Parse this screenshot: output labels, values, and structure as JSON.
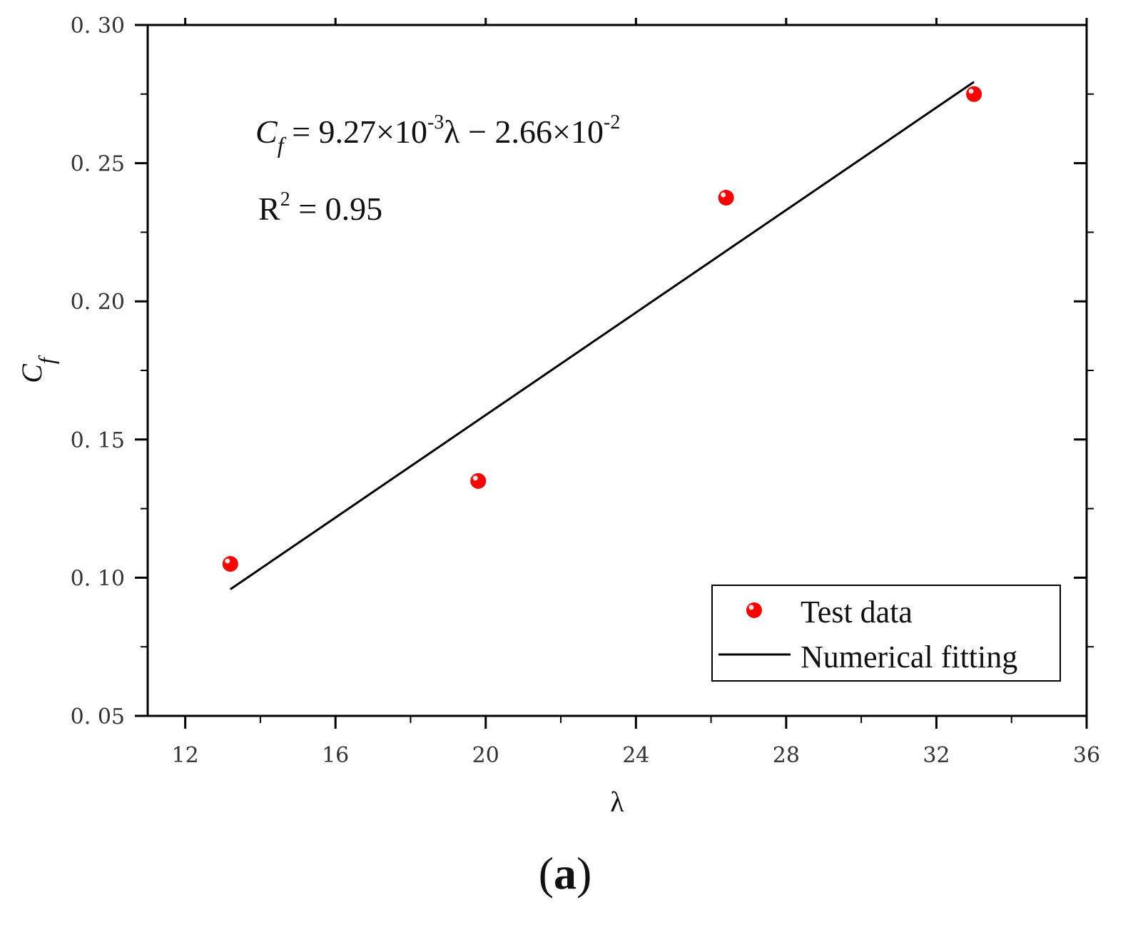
{
  "chart_data": {
    "type": "scatter",
    "xlabel": "λ",
    "ylabel": "C_f",
    "xlim": [
      11,
      36
    ],
    "ylim": [
      0.05,
      0.3
    ],
    "x_ticks": [
      12,
      16,
      20,
      24,
      28,
      32,
      36
    ],
    "y_ticks": [
      0.05,
      0.1,
      0.15,
      0.2,
      0.25,
      0.3
    ],
    "x_tick_labels": [
      "12",
      "16",
      "20",
      "24",
      "28",
      "32",
      "36"
    ],
    "y_tick_labels": [
      "0. 05",
      "0. 10",
      "0. 15",
      "0. 20",
      "0. 25",
      "0. 30"
    ],
    "grid": false,
    "legend_position": "bottom-right",
    "series": [
      {
        "name": "Test data",
        "kind": "scatter",
        "color": "#ff0000",
        "x": [
          13.2,
          19.8,
          26.4,
          33.0
        ],
        "y": [
          0.105,
          0.135,
          0.2375,
          0.275
        ]
      },
      {
        "name": "Numerical fitting",
        "kind": "line",
        "color": "#000000",
        "x": [
          13.2,
          33.0
        ],
        "y": [
          0.0958,
          0.2794
        ]
      }
    ],
    "annotations": {
      "equation": {
        "c": "C",
        "f": "f",
        "body": " = 9.27×10",
        "exp1": "-3",
        "mid": "λ − 2.66×10",
        "exp2": "-2"
      },
      "r2": {
        "r": "R",
        "sup": "2",
        "rest": " = 0.95"
      }
    }
  },
  "caption": {
    "open": "(",
    "letter": "a",
    "close": ")"
  }
}
